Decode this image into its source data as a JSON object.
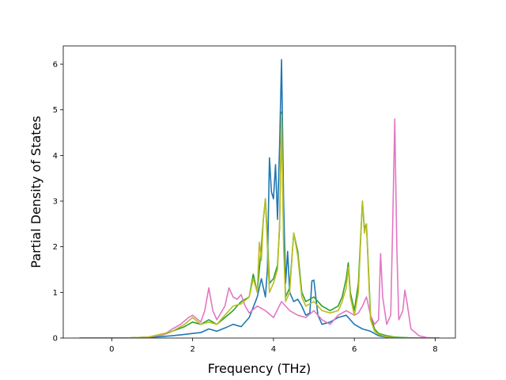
{
  "chart_data": {
    "type": "line",
    "title": "",
    "xlabel": "Frequency (THz)",
    "ylabel": "Partial Density of States",
    "xlim": [
      -1.2,
      8.5
    ],
    "ylim": [
      0,
      6.4
    ],
    "xticks": [
      0,
      2,
      4,
      6,
      8
    ],
    "yticks": [
      0,
      1,
      2,
      3,
      4,
      5,
      6
    ],
    "grid": false,
    "series": [
      {
        "color": "#1f77b4",
        "points": [
          [
            -0.8,
            0
          ],
          [
            0.2,
            0
          ],
          [
            0.8,
            0.01
          ],
          [
            1.2,
            0.03
          ],
          [
            1.5,
            0.05
          ],
          [
            1.8,
            0.08
          ],
          [
            2.0,
            0.1
          ],
          [
            2.2,
            0.12
          ],
          [
            2.4,
            0.2
          ],
          [
            2.6,
            0.15
          ],
          [
            2.8,
            0.22
          ],
          [
            3.0,
            0.3
          ],
          [
            3.2,
            0.25
          ],
          [
            3.4,
            0.45
          ],
          [
            3.6,
            0.9
          ],
          [
            3.7,
            1.3
          ],
          [
            3.8,
            0.9
          ],
          [
            3.85,
            1.5
          ],
          [
            3.9,
            3.95
          ],
          [
            3.95,
            3.2
          ],
          [
            4.0,
            3.05
          ],
          [
            4.05,
            3.8
          ],
          [
            4.1,
            2.6
          ],
          [
            4.15,
            4.2
          ],
          [
            4.2,
            6.1
          ],
          [
            4.25,
            3.0
          ],
          [
            4.3,
            1.2
          ],
          [
            4.35,
            1.9
          ],
          [
            4.4,
            1.0
          ],
          [
            4.5,
            0.8
          ],
          [
            4.6,
            0.85
          ],
          [
            4.7,
            0.7
          ],
          [
            4.8,
            0.5
          ],
          [
            4.9,
            0.55
          ],
          [
            4.95,
            1.25
          ],
          [
            5.0,
            1.27
          ],
          [
            5.1,
            0.5
          ],
          [
            5.2,
            0.3
          ],
          [
            5.4,
            0.35
          ],
          [
            5.6,
            0.45
          ],
          [
            5.8,
            0.5
          ],
          [
            6.0,
            0.3
          ],
          [
            6.2,
            0.2
          ],
          [
            6.4,
            0.15
          ],
          [
            6.6,
            0.05
          ],
          [
            6.8,
            0.02
          ],
          [
            7.0,
            0.01
          ],
          [
            7.5,
            0
          ],
          [
            8.1,
            0
          ]
        ]
      },
      {
        "color": "#2ca02c",
        "points": [
          [
            -0.8,
            0
          ],
          [
            0.3,
            0
          ],
          [
            0.9,
            0.02
          ],
          [
            1.3,
            0.08
          ],
          [
            1.5,
            0.15
          ],
          [
            1.8,
            0.25
          ],
          [
            2.0,
            0.35
          ],
          [
            2.2,
            0.3
          ],
          [
            2.4,
            0.4
          ],
          [
            2.6,
            0.3
          ],
          [
            2.8,
            0.45
          ],
          [
            3.0,
            0.6
          ],
          [
            3.2,
            0.8
          ],
          [
            3.4,
            0.9
          ],
          [
            3.5,
            1.4
          ],
          [
            3.6,
            1.0
          ],
          [
            3.7,
            2.0
          ],
          [
            3.75,
            2.6
          ],
          [
            3.8,
            3.05
          ],
          [
            3.85,
            2.2
          ],
          [
            3.9,
            1.2
          ],
          [
            4.0,
            1.3
          ],
          [
            4.1,
            1.6
          ],
          [
            4.15,
            2.4
          ],
          [
            4.2,
            4.95
          ],
          [
            4.25,
            2.2
          ],
          [
            4.3,
            0.9
          ],
          [
            4.4,
            1.1
          ],
          [
            4.5,
            2.3
          ],
          [
            4.6,
            1.9
          ],
          [
            4.7,
            1.0
          ],
          [
            4.8,
            0.8
          ],
          [
            5.0,
            0.9
          ],
          [
            5.2,
            0.7
          ],
          [
            5.4,
            0.6
          ],
          [
            5.6,
            0.7
          ],
          [
            5.7,
            0.9
          ],
          [
            5.8,
            1.3
          ],
          [
            5.85,
            1.65
          ],
          [
            5.9,
            1.0
          ],
          [
            6.0,
            0.6
          ],
          [
            6.1,
            1.2
          ],
          [
            6.2,
            3.0
          ],
          [
            6.25,
            2.4
          ],
          [
            6.3,
            2.5
          ],
          [
            6.35,
            1.5
          ],
          [
            6.4,
            0.5
          ],
          [
            6.5,
            0.2
          ],
          [
            6.6,
            0.1
          ],
          [
            6.8,
            0.05
          ],
          [
            7.0,
            0.02
          ],
          [
            7.5,
            0
          ],
          [
            8.1,
            0
          ]
        ]
      },
      {
        "color": "#e377c2",
        "points": [
          [
            -0.8,
            0
          ],
          [
            0.4,
            0
          ],
          [
            0.9,
            0.02
          ],
          [
            1.3,
            0.08
          ],
          [
            1.5,
            0.2
          ],
          [
            1.7,
            0.3
          ],
          [
            1.9,
            0.45
          ],
          [
            2.0,
            0.5
          ],
          [
            2.2,
            0.35
          ],
          [
            2.3,
            0.6
          ],
          [
            2.4,
            1.1
          ],
          [
            2.5,
            0.6
          ],
          [
            2.6,
            0.4
          ],
          [
            2.8,
            0.7
          ],
          [
            2.9,
            1.1
          ],
          [
            3.0,
            0.9
          ],
          [
            3.1,
            0.85
          ],
          [
            3.2,
            0.95
          ],
          [
            3.3,
            0.7
          ],
          [
            3.4,
            0.55
          ],
          [
            3.6,
            0.7
          ],
          [
            3.8,
            0.6
          ],
          [
            4.0,
            0.45
          ],
          [
            4.2,
            0.8
          ],
          [
            4.4,
            0.6
          ],
          [
            4.6,
            0.5
          ],
          [
            4.8,
            0.45
          ],
          [
            5.0,
            0.6
          ],
          [
            5.2,
            0.4
          ],
          [
            5.4,
            0.3
          ],
          [
            5.6,
            0.5
          ],
          [
            5.8,
            0.6
          ],
          [
            6.0,
            0.5
          ],
          [
            6.1,
            0.55
          ],
          [
            6.2,
            0.7
          ],
          [
            6.3,
            0.9
          ],
          [
            6.4,
            0.5
          ],
          [
            6.5,
            0.3
          ],
          [
            6.6,
            0.4
          ],
          [
            6.65,
            1.85
          ],
          [
            6.7,
            0.9
          ],
          [
            6.8,
            0.3
          ],
          [
            6.9,
            0.5
          ],
          [
            6.95,
            2.5
          ],
          [
            7.0,
            4.8
          ],
          [
            7.05,
            2.0
          ],
          [
            7.1,
            0.4
          ],
          [
            7.2,
            0.6
          ],
          [
            7.25,
            1.05
          ],
          [
            7.3,
            0.8
          ],
          [
            7.4,
            0.2
          ],
          [
            7.6,
            0.05
          ],
          [
            7.8,
            0.01
          ],
          [
            8.1,
            0
          ]
        ]
      },
      {
        "color": "#bcbd22",
        "points": [
          [
            -0.8,
            0
          ],
          [
            0.3,
            0
          ],
          [
            0.9,
            0.02
          ],
          [
            1.3,
            0.1
          ],
          [
            1.5,
            0.15
          ],
          [
            1.8,
            0.3
          ],
          [
            2.0,
            0.45
          ],
          [
            2.2,
            0.3
          ],
          [
            2.4,
            0.35
          ],
          [
            2.6,
            0.3
          ],
          [
            2.8,
            0.5
          ],
          [
            3.0,
            0.7
          ],
          [
            3.2,
            0.75
          ],
          [
            3.4,
            0.9
          ],
          [
            3.5,
            1.3
          ],
          [
            3.6,
            1.0
          ],
          [
            3.65,
            2.1
          ],
          [
            3.7,
            1.7
          ],
          [
            3.75,
            2.6
          ],
          [
            3.8,
            3.05
          ],
          [
            3.85,
            2.0
          ],
          [
            3.9,
            1.0
          ],
          [
            4.0,
            1.2
          ],
          [
            4.1,
            1.5
          ],
          [
            4.15,
            2.5
          ],
          [
            4.2,
            4.9
          ],
          [
            4.25,
            2.0
          ],
          [
            4.3,
            0.8
          ],
          [
            4.4,
            1.0
          ],
          [
            4.5,
            2.3
          ],
          [
            4.6,
            1.8
          ],
          [
            4.7,
            0.9
          ],
          [
            4.8,
            0.7
          ],
          [
            5.0,
            0.8
          ],
          [
            5.2,
            0.6
          ],
          [
            5.4,
            0.55
          ],
          [
            5.6,
            0.6
          ],
          [
            5.7,
            0.8
          ],
          [
            5.8,
            1.1
          ],
          [
            5.85,
            1.55
          ],
          [
            5.9,
            0.9
          ],
          [
            6.0,
            0.5
          ],
          [
            6.1,
            1.0
          ],
          [
            6.2,
            3.0
          ],
          [
            6.25,
            2.3
          ],
          [
            6.3,
            2.5
          ],
          [
            6.35,
            1.4
          ],
          [
            6.4,
            0.4
          ],
          [
            6.5,
            0.15
          ],
          [
            6.6,
            0.08
          ],
          [
            6.8,
            0.03
          ],
          [
            7.0,
            0.01
          ],
          [
            7.5,
            0
          ],
          [
            8.1,
            0
          ]
        ]
      }
    ]
  }
}
